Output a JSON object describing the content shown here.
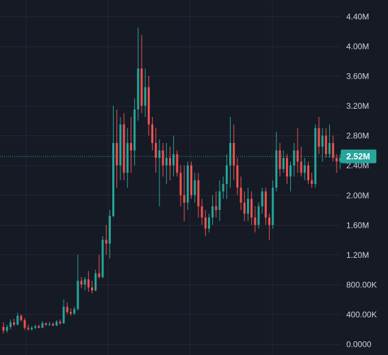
{
  "chart_data": {
    "type": "candlestick",
    "title": "",
    "xlabel": "",
    "ylabel": "",
    "ylim": [
      0,
      4600000
    ],
    "y_ticks": [
      {
        "value": 0,
        "label": "0.0000"
      },
      {
        "value": 400000,
        "label": "400.00K"
      },
      {
        "value": 800000,
        "label": "800.00K"
      },
      {
        "value": 1200000,
        "label": "1.20M"
      },
      {
        "value": 1600000,
        "label": "1.60M"
      },
      {
        "value": 2000000,
        "label": "2.00M"
      },
      {
        "value": 2400000,
        "label": "2.40M"
      },
      {
        "value": 2800000,
        "label": "2.80M"
      },
      {
        "value": 3200000,
        "label": "3.20M"
      },
      {
        "value": 3600000,
        "label": "3.60M"
      },
      {
        "value": 4000000,
        "label": "4.00M"
      },
      {
        "value": 4400000,
        "label": "4.40M"
      }
    ],
    "last_price": {
      "value": 2520000,
      "label": "2.52M"
    },
    "grid": true,
    "colors": {
      "background": "#161a25",
      "grid": "#232734",
      "up": "#26a69a",
      "down": "#ef5350",
      "price_line": "#26a69a",
      "price_tag": "#26a69a"
    },
    "candles": [
      [
        230000,
        290000,
        140000,
        180000
      ],
      [
        180000,
        260000,
        150000,
        230000
      ],
      [
        230000,
        330000,
        200000,
        290000
      ],
      [
        290000,
        340000,
        240000,
        260000
      ],
      [
        260000,
        420000,
        250000,
        380000
      ],
      [
        380000,
        400000,
        300000,
        320000
      ],
      [
        320000,
        350000,
        190000,
        220000
      ],
      [
        220000,
        260000,
        180000,
        200000
      ],
      [
        200000,
        240000,
        180000,
        220000
      ],
      [
        220000,
        260000,
        200000,
        240000
      ],
      [
        240000,
        260000,
        210000,
        220000
      ],
      [
        220000,
        310000,
        210000,
        280000
      ],
      [
        280000,
        290000,
        240000,
        260000
      ],
      [
        260000,
        300000,
        240000,
        270000
      ],
      [
        270000,
        290000,
        240000,
        250000
      ],
      [
        250000,
        320000,
        240000,
        300000
      ],
      [
        300000,
        330000,
        260000,
        280000
      ],
      [
        280000,
        600000,
        270000,
        500000
      ],
      [
        500000,
        560000,
        400000,
        430000
      ],
      [
        430000,
        480000,
        380000,
        410000
      ],
      [
        410000,
        500000,
        390000,
        470000
      ],
      [
        470000,
        1200000,
        450000,
        850000
      ],
      [
        850000,
        900000,
        750000,
        800000
      ],
      [
        800000,
        900000,
        720000,
        870000
      ],
      [
        870000,
        980000,
        700000,
        760000
      ],
      [
        760000,
        850000,
        680000,
        720000
      ],
      [
        720000,
        1000000,
        710000,
        950000
      ],
      [
        950000,
        1200000,
        880000,
        900000
      ],
      [
        900000,
        1450000,
        880000,
        1400000
      ],
      [
        1400000,
        1600000,
        1200000,
        1350000
      ],
      [
        1350000,
        1800000,
        1150000,
        1720000
      ],
      [
        1720000,
        3200000,
        1700000,
        2700000
      ],
      [
        2700000,
        3150000,
        2100000,
        2400000
      ],
      [
        2400000,
        3050000,
        2200000,
        2950000
      ],
      [
        2950000,
        3100000,
        2200000,
        2300000
      ],
      [
        2300000,
        2900000,
        2100000,
        2700000
      ],
      [
        2700000,
        3050000,
        2300000,
        2600000
      ],
      [
        2600000,
        3300000,
        2400000,
        3150000
      ],
      [
        3150000,
        4250000,
        3000000,
        3700000
      ],
      [
        3700000,
        4150000,
        3100000,
        3200000
      ],
      [
        3200000,
        3700000,
        3050000,
        3450000
      ],
      [
        3450000,
        3600000,
        2800000,
        2950000
      ],
      [
        2950000,
        3050000,
        2600000,
        2700000
      ],
      [
        2700000,
        2900000,
        2300000,
        2500000
      ],
      [
        2500000,
        2750000,
        1850000,
        2600000
      ],
      [
        2600000,
        2700000,
        2250000,
        2400000
      ],
      [
        2400000,
        2700000,
        2150000,
        2500000
      ],
      [
        2500000,
        2650000,
        2200000,
        2400000
      ],
      [
        2400000,
        2800000,
        2250000,
        2550000
      ],
      [
        2550000,
        2600000,
        2250000,
        2300000
      ],
      [
        2300000,
        2400000,
        1850000,
        2000000
      ],
      [
        2000000,
        2400000,
        1650000,
        1900000
      ],
      [
        1900000,
        2450000,
        1800000,
        2400000
      ],
      [
        2400000,
        2450000,
        1950000,
        2000000
      ],
      [
        2000000,
        2300000,
        1900000,
        2200000
      ],
      [
        2200000,
        2300000,
        1700000,
        1850000
      ],
      [
        1850000,
        1950000,
        1600000,
        1700000
      ],
      [
        1700000,
        1800000,
        1450000,
        1550000
      ],
      [
        1550000,
        1750000,
        1500000,
        1700000
      ],
      [
        1700000,
        2000000,
        1600000,
        1850000
      ],
      [
        1850000,
        2050000,
        1700000,
        1800000
      ],
      [
        1800000,
        2200000,
        1650000,
        2050000
      ],
      [
        2050000,
        2250000,
        1950000,
        2150000
      ],
      [
        2150000,
        2550000,
        1950000,
        2400000
      ],
      [
        2400000,
        3050000,
        2100000,
        2700000
      ],
      [
        2700000,
        2950000,
        2200000,
        2400000
      ],
      [
        2400000,
        2500000,
        2000000,
        2100000
      ],
      [
        2100000,
        2250000,
        1800000,
        1900000
      ],
      [
        1900000,
        2050000,
        1650000,
        1750000
      ],
      [
        1750000,
        2100000,
        1650000,
        1950000
      ],
      [
        1950000,
        2050000,
        1600000,
        1700000
      ],
      [
        1700000,
        1850000,
        1500000,
        1600000
      ],
      [
        1600000,
        1900000,
        1550000,
        1850000
      ],
      [
        1850000,
        2100000,
        1750000,
        2050000
      ],
      [
        2050000,
        2100000,
        1600000,
        1700000
      ],
      [
        1700000,
        1750000,
        1400000,
        1600000
      ],
      [
        1600000,
        2200000,
        1550000,
        2100000
      ],
      [
        2100000,
        2850000,
        2050000,
        2600000
      ],
      [
        2600000,
        2700000,
        2250000,
        2350000
      ],
      [
        2350000,
        2600000,
        2300000,
        2500000
      ],
      [
        2500000,
        2550000,
        2150000,
        2250000
      ],
      [
        2250000,
        2450000,
        2050000,
        2400000
      ],
      [
        2400000,
        2700000,
        2250000,
        2600000
      ],
      [
        2600000,
        2900000,
        2300000,
        2450000
      ],
      [
        2450000,
        2650000,
        2250000,
        2300000
      ],
      [
        2300000,
        2500000,
        2200000,
        2400000
      ],
      [
        2400000,
        2450000,
        2150000,
        2200000
      ],
      [
        2200000,
        2300000,
        2100000,
        2150000
      ],
      [
        2150000,
        2950000,
        2100000,
        2900000
      ],
      [
        2900000,
        3050000,
        2550000,
        2650000
      ],
      [
        2650000,
        2900000,
        2450000,
        2800000
      ],
      [
        2800000,
        2900000,
        2500000,
        2550000
      ],
      [
        2550000,
        2950000,
        2500000,
        2700000
      ],
      [
        2700000,
        2800000,
        2450000,
        2500000
      ],
      [
        2500000,
        2550000,
        2300000,
        2450000
      ],
      [
        2450000,
        2550000,
        2350000,
        2500000
      ],
      [
        2500000,
        2560000,
        2460000,
        2520000
      ]
    ]
  }
}
